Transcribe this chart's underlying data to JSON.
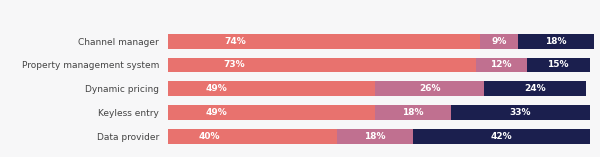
{
  "categories": [
    "Channel manager",
    "Property management system",
    "Dynamic pricing",
    "Keyless entry",
    "Data provider"
  ],
  "yes": [
    74,
    73,
    49,
    49,
    40
  ],
  "expect_to_start": [
    9,
    12,
    26,
    18,
    18
  ],
  "no": [
    18,
    15,
    24,
    33,
    42
  ],
  "yes_color": "#e8726e",
  "expect_color": "#c07090",
  "no_color": "#1b1f4e",
  "background_color": "#f7f7f8",
  "text_color_white": "#ffffff",
  "label_fontsize": 6.5,
  "legend_fontsize": 6.5,
  "category_fontsize": 6.5,
  "bar_height": 0.62,
  "xlim": [
    0,
    101
  ]
}
